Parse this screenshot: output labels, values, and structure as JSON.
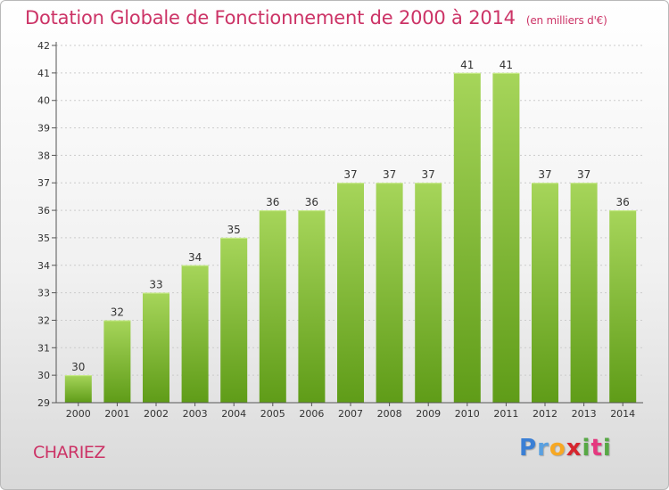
{
  "header": {
    "title": "Dotation Globale de Fonctionnement de 2000 à 2014",
    "unit": "(en milliers d'€)"
  },
  "footer": {
    "commune": "CHARIEZ",
    "logo_letters": [
      "P",
      "r",
      "o",
      "x",
      "i",
      "t",
      "i"
    ],
    "logo_colors": [
      "#3a7fd5",
      "#5aa0e0",
      "#f7a823",
      "#d6262e",
      "#57a845",
      "#e5387f",
      "#57a845"
    ]
  },
  "colors": {
    "bar_light": "#a6d55a",
    "bar_dark": "#5f9c18",
    "axis": "#555555",
    "grid": "#cccccc",
    "text": "#333333"
  },
  "chart_data": {
    "type": "bar",
    "title": "Dotation Globale de Fonctionnement de 2000 à 2014",
    "subtitle": "(en milliers d'€)",
    "xlabel": "",
    "ylabel": "",
    "categories": [
      "2000",
      "2001",
      "2002",
      "2003",
      "2004",
      "2005",
      "2006",
      "2007",
      "2008",
      "2009",
      "2010",
      "2011",
      "2012",
      "2013",
      "2014"
    ],
    "values": [
      30,
      32,
      33,
      34,
      35,
      36,
      36,
      37,
      37,
      37,
      41,
      41,
      37,
      37,
      36
    ],
    "ylim": [
      29,
      42
    ],
    "yticks": [
      29,
      30,
      31,
      32,
      33,
      34,
      35,
      36,
      37,
      38,
      39,
      40,
      41,
      42
    ],
    "grid": true,
    "data_labels": true
  }
}
